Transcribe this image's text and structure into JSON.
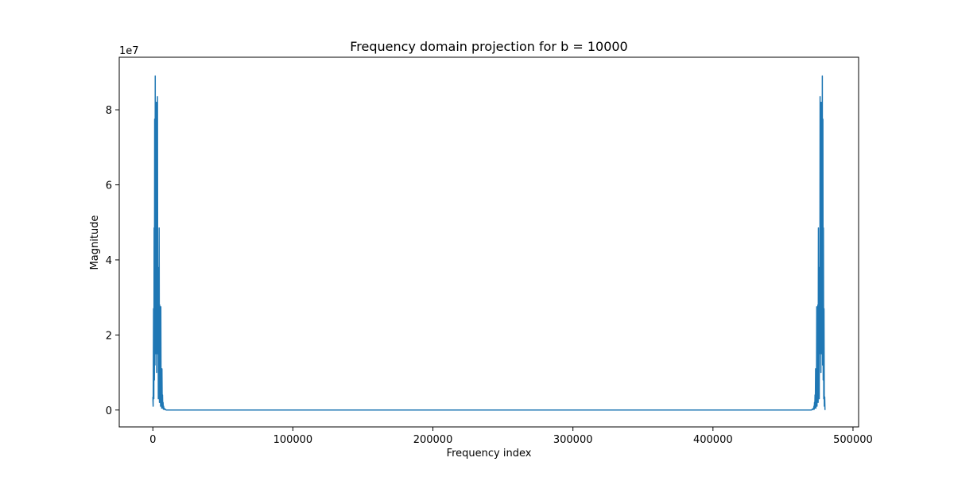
{
  "chart_data": {
    "type": "line",
    "title": "Frequency domain projection for b = 10000",
    "xlabel": "Frequency index",
    "ylabel": "Magnitude",
    "y_scale_label": "1e7",
    "xlim": [
      -24000,
      504000
    ],
    "ylim": [
      -0.45,
      9.4
    ],
    "y_multiplier": 10000000,
    "x_ticks": [
      0,
      100000,
      200000,
      300000,
      400000,
      500000
    ],
    "x_tick_labels": [
      "0",
      "100000",
      "200000",
      "300000",
      "400000",
      "500000"
    ],
    "y_ticks": [
      0,
      2,
      4,
      6,
      8
    ],
    "y_tick_labels": [
      "0",
      "2",
      "4",
      "6",
      "8"
    ],
    "grid": false,
    "series": [
      {
        "color": "#1f77b4",
        "x": [
          0,
          200,
          500,
          700,
          900,
          1100,
          1300,
          1500,
          1700,
          1900,
          2100,
          2300,
          2500,
          2700,
          2900,
          3100,
          3300,
          3500,
          3700,
          3900,
          4100,
          4300,
          4500,
          4700,
          4900,
          5100,
          5300,
          5500,
          5700,
          5900,
          6100,
          6300,
          6500,
          6700,
          6900,
          7100,
          7300,
          7500,
          7700,
          7900,
          8100,
          8300,
          8500,
          8700,
          8900,
          9100,
          9300,
          9500,
          9700,
          9900,
          10100,
          10500,
          469500,
          469900,
          470100,
          470300,
          470500,
          470700,
          470900,
          471100,
          471300,
          471500,
          471700,
          471900,
          472100,
          472300,
          472500,
          472700,
          472900,
          473100,
          473300,
          473500,
          473700,
          473900,
          474100,
          474300,
          474500,
          474700,
          474900,
          475100,
          475300,
          475500,
          475700,
          475900,
          476100,
          476300,
          476500,
          476700,
          476900,
          477100,
          477300,
          477500,
          477700,
          477900,
          478100,
          478300,
          478500,
          478700,
          478900,
          479100,
          479300,
          479500,
          479800,
          480000
        ],
        "y": [
          0.35,
          0.1,
          2.7,
          0.3,
          4.85,
          0.8,
          7.75,
          1.2,
          8.9,
          1.5,
          6.2,
          2.0,
          8.2,
          1.0,
          4.5,
          2.5,
          8.35,
          1.5,
          3.8,
          0.3,
          3.7,
          1.0,
          4.85,
          0.2,
          2.8,
          0.5,
          1.5,
          0.1,
          2.75,
          0.3,
          0.6,
          0.05,
          1.1,
          0.1,
          0.4,
          0.05,
          0.2,
          0.02,
          0.1,
          0.02,
          0.05,
          0.02,
          0.03,
          0.01,
          0.02,
          0.01,
          0.01,
          0.0,
          0.0,
          0.0,
          0.0,
          0.0,
          0.0,
          0.0,
          0.0,
          0.0,
          0.01,
          0.01,
          0.02,
          0.01,
          0.03,
          0.02,
          0.05,
          0.02,
          0.1,
          0.02,
          0.2,
          0.05,
          0.4,
          0.1,
          1.1,
          0.05,
          0.6,
          0.3,
          2.75,
          0.1,
          1.5,
          0.5,
          2.8,
          0.2,
          4.85,
          1.0,
          3.7,
          0.3,
          3.8,
          1.5,
          8.35,
          2.5,
          4.5,
          1.0,
          8.2,
          2.0,
          6.2,
          1.5,
          8.9,
          1.2,
          7.75,
          0.8,
          4.85,
          0.3,
          2.7,
          0.1,
          0.35,
          0.0
        ]
      }
    ]
  }
}
